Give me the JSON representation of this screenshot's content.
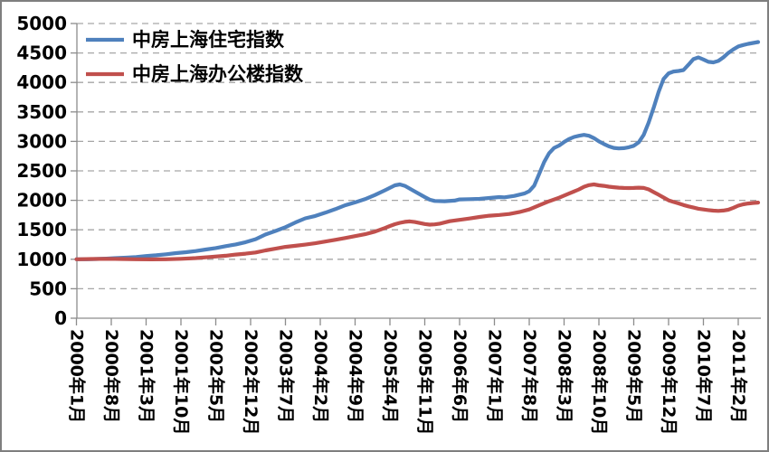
{
  "chart_data": {
    "type": "line",
    "title": "",
    "grid": "horizontal-dashed",
    "legend_position": "top-left",
    "y_axis": {
      "min": 0,
      "max": 5000,
      "step": 500,
      "tick_labels": [
        "0",
        "500",
        "1000",
        "1500",
        "2000",
        "2500",
        "3000",
        "3500",
        "4000",
        "4500",
        "5000"
      ]
    },
    "x_axis": {
      "months_span": 137,
      "tick_months": [
        0,
        7,
        14,
        21,
        28,
        35,
        42,
        49,
        56,
        63,
        70,
        77,
        84,
        91,
        98,
        105,
        112,
        119,
        126,
        133
      ],
      "tick_labels": [
        "2000年1月",
        "2000年8月",
        "2001年3月",
        "2001年10月",
        "2002年5月",
        "2002年12月",
        "2003年7月",
        "2004年2月",
        "2004年9月",
        "2005年4月",
        "2005年11月",
        "2006年6月",
        "2007年1月",
        "2007年8月",
        "2008年3月",
        "2008年10月",
        "2009年5月",
        "2009年12月",
        "2010年7月",
        "2011年2月"
      ]
    },
    "series": [
      {
        "name": "中房上海住宅指数",
        "color": "#4F81BD",
        "points": [
          [
            0,
            1000
          ],
          [
            2,
            1000
          ],
          [
            4,
            1005
          ],
          [
            6,
            1010
          ],
          [
            8,
            1020
          ],
          [
            10,
            1028
          ],
          [
            12,
            1038
          ],
          [
            14,
            1055
          ],
          [
            16,
            1068
          ],
          [
            18,
            1085
          ],
          [
            20,
            1105
          ],
          [
            22,
            1120
          ],
          [
            24,
            1140
          ],
          [
            26,
            1165
          ],
          [
            28,
            1190
          ],
          [
            30,
            1222
          ],
          [
            32,
            1252
          ],
          [
            34,
            1290
          ],
          [
            36,
            1340
          ],
          [
            38,
            1420
          ],
          [
            40,
            1480
          ],
          [
            42,
            1545
          ],
          [
            44,
            1625
          ],
          [
            46,
            1695
          ],
          [
            48,
            1735
          ],
          [
            50,
            1790
          ],
          [
            52,
            1850
          ],
          [
            54,
            1915
          ],
          [
            56,
            1965
          ],
          [
            58,
            2020
          ],
          [
            60,
            2090
          ],
          [
            62,
            2170
          ],
          [
            64,
            2255
          ],
          [
            65,
            2270
          ],
          [
            66,
            2245
          ],
          [
            68,
            2150
          ],
          [
            70,
            2055
          ],
          [
            71,
            2010
          ],
          [
            72,
            1990
          ],
          [
            74,
            1985
          ],
          [
            76,
            1995
          ],
          [
            77,
            2015
          ],
          [
            79,
            2020
          ],
          [
            81,
            2025
          ],
          [
            83,
            2040
          ],
          [
            85,
            2055
          ],
          [
            86,
            2050
          ],
          [
            88,
            2075
          ],
          [
            90,
            2115
          ],
          [
            91,
            2155
          ],
          [
            92,
            2250
          ],
          [
            93,
            2450
          ],
          [
            94,
            2650
          ],
          [
            95,
            2800
          ],
          [
            96,
            2890
          ],
          [
            97,
            2930
          ],
          [
            98,
            2990
          ],
          [
            99,
            3040
          ],
          [
            100,
            3075
          ],
          [
            101,
            3095
          ],
          [
            102,
            3110
          ],
          [
            103,
            3095
          ],
          [
            104,
            3055
          ],
          [
            105,
            3000
          ],
          [
            106,
            2955
          ],
          [
            107,
            2915
          ],
          [
            108,
            2890
          ],
          [
            109,
            2880
          ],
          [
            110,
            2885
          ],
          [
            111,
            2900
          ],
          [
            112,
            2925
          ],
          [
            113,
            2985
          ],
          [
            114,
            3110
          ],
          [
            115,
            3320
          ],
          [
            116,
            3570
          ],
          [
            117,
            3840
          ],
          [
            118,
            4060
          ],
          [
            119,
            4155
          ],
          [
            120,
            4185
          ],
          [
            121,
            4195
          ],
          [
            122,
            4210
          ],
          [
            123,
            4300
          ],
          [
            124,
            4395
          ],
          [
            125,
            4425
          ],
          [
            126,
            4390
          ],
          [
            127,
            4350
          ],
          [
            128,
            4340
          ],
          [
            129,
            4365
          ],
          [
            130,
            4425
          ],
          [
            131,
            4500
          ],
          [
            132,
            4560
          ],
          [
            133,
            4610
          ],
          [
            134,
            4635
          ],
          [
            135,
            4655
          ],
          [
            136,
            4670
          ],
          [
            137,
            4685
          ]
        ]
      },
      {
        "name": "中房上海办公楼指数",
        "color": "#C0504D",
        "points": [
          [
            0,
            1000
          ],
          [
            3,
            1005
          ],
          [
            6,
            1008
          ],
          [
            9,
            1005
          ],
          [
            12,
            1000
          ],
          [
            15,
            998
          ],
          [
            18,
            1000
          ],
          [
            21,
            1008
          ],
          [
            24,
            1020
          ],
          [
            27,
            1040
          ],
          [
            30,
            1060
          ],
          [
            32,
            1080
          ],
          [
            34,
            1095
          ],
          [
            36,
            1115
          ],
          [
            38,
            1150
          ],
          [
            40,
            1180
          ],
          [
            42,
            1210
          ],
          [
            44,
            1228
          ],
          [
            46,
            1248
          ],
          [
            48,
            1272
          ],
          [
            50,
            1300
          ],
          [
            52,
            1330
          ],
          [
            54,
            1360
          ],
          [
            56,
            1392
          ],
          [
            58,
            1425
          ],
          [
            60,
            1470
          ],
          [
            61,
            1500
          ],
          [
            62,
            1530
          ],
          [
            63,
            1565
          ],
          [
            64,
            1595
          ],
          [
            65,
            1618
          ],
          [
            66,
            1635
          ],
          [
            67,
            1642
          ],
          [
            68,
            1632
          ],
          [
            69,
            1615
          ],
          [
            70,
            1598
          ],
          [
            71,
            1588
          ],
          [
            72,
            1592
          ],
          [
            73,
            1605
          ],
          [
            74,
            1625
          ],
          [
            75,
            1645
          ],
          [
            77,
            1668
          ],
          [
            79,
            1692
          ],
          [
            81,
            1718
          ],
          [
            83,
            1740
          ],
          [
            85,
            1752
          ],
          [
            87,
            1768
          ],
          [
            89,
            1800
          ],
          [
            91,
            1845
          ],
          [
            93,
            1915
          ],
          [
            95,
            1985
          ],
          [
            97,
            2045
          ],
          [
            99,
            2115
          ],
          [
            101,
            2185
          ],
          [
            102,
            2230
          ],
          [
            103,
            2258
          ],
          [
            104,
            2270
          ],
          [
            105,
            2255
          ],
          [
            106,
            2245
          ],
          [
            107,
            2232
          ],
          [
            108,
            2222
          ],
          [
            109,
            2215
          ],
          [
            110,
            2210
          ],
          [
            111,
            2208
          ],
          [
            112,
            2210
          ],
          [
            113,
            2215
          ],
          [
            114,
            2210
          ],
          [
            115,
            2185
          ],
          [
            116,
            2140
          ],
          [
            117,
            2095
          ],
          [
            118,
            2048
          ],
          [
            119,
            2000
          ],
          [
            120,
            1972
          ],
          [
            121,
            1948
          ],
          [
            122,
            1920
          ],
          [
            123,
            1898
          ],
          [
            124,
            1878
          ],
          [
            125,
            1858
          ],
          [
            126,
            1845
          ],
          [
            127,
            1834
          ],
          [
            128,
            1825
          ],
          [
            129,
            1820
          ],
          [
            130,
            1826
          ],
          [
            131,
            1840
          ],
          [
            132,
            1872
          ],
          [
            133,
            1910
          ],
          [
            134,
            1932
          ],
          [
            135,
            1946
          ],
          [
            136,
            1955
          ],
          [
            137,
            1962
          ]
        ]
      }
    ]
  },
  "colors": {
    "background": "#FFFFFF",
    "frame_border": "#7F7F7F",
    "gridline": "#A6A6A6",
    "axis_line": "#8C8C8C",
    "text": "#000000",
    "series_residential": "#4F81BD",
    "series_office": "#C0504D"
  }
}
